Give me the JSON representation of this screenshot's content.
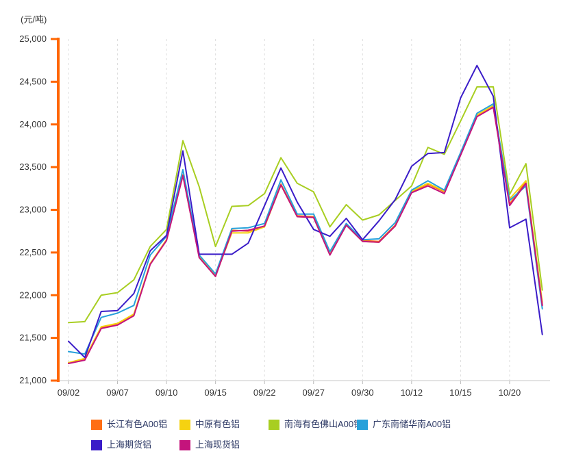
{
  "page": {
    "background": "#ffffff"
  },
  "chart_data": {
    "type": "line",
    "title": "",
    "y_axis": {
      "title": "(元/吨)",
      "min": 21000,
      "max": 25000,
      "tick_interval": 500,
      "tick_labels": [
        "25,000",
        "24,500",
        "24,000",
        "23,500",
        "23,000",
        "22,500",
        "22,000",
        "21,500",
        "21,000"
      ],
      "axis_color": "#ff6600",
      "label_color": "#333333"
    },
    "x_axis": {
      "num_points": 30,
      "tick_labels": [
        "09/02",
        "09/07",
        "09/10",
        "09/15",
        "09/22",
        "09/27",
        "09/30",
        "10/12",
        "10/15",
        "10/20"
      ],
      "tick_positions": [
        0,
        3,
        6,
        9,
        12,
        15,
        18,
        21,
        24,
        27
      ],
      "axis_color": "#e3e3e3",
      "tick_color": "#bbbbbb",
      "gridline_color": "#dddddd",
      "gridline_style": "dashed",
      "label_color": "#333333"
    },
    "legend_position": "bottom",
    "series": [
      {
        "name": "长江有色A00铝",
        "color": "#ff6e14",
        "values": [
          21210,
          21250,
          21620,
          21660,
          21770,
          22370,
          22650,
          23410,
          22450,
          22220,
          22760,
          22750,
          22810,
          23300,
          22930,
          22920,
          22480,
          22830,
          22640,
          22630,
          22820,
          23210,
          23300,
          23210,
          23650,
          24100,
          24210,
          23070,
          23330,
          21890
        ]
      },
      {
        "name": "中原有色铝",
        "color": "#f5d211",
        "values": [
          21210,
          21260,
          21630,
          21670,
          21780,
          22370,
          22650,
          23400,
          22450,
          22230,
          22730,
          22730,
          22800,
          23290,
          22920,
          22910,
          22480,
          22820,
          22630,
          22620,
          22810,
          23220,
          23310,
          23220,
          23660,
          24110,
          24220,
          23130,
          23340,
          21920
        ]
      },
      {
        "name": "南海有色佛山A00铝",
        "color": "#a8ce21",
        "values": [
          21680,
          21690,
          22000,
          22030,
          22180,
          22570,
          22770,
          23810,
          23270,
          22570,
          23040,
          23050,
          23190,
          23610,
          23310,
          23210,
          22800,
          23060,
          22880,
          22940,
          23110,
          23280,
          23730,
          23650,
          24040,
          24440,
          24440,
          23180,
          23540,
          22060
        ]
      },
      {
        "name": "广东南储华南A00铝",
        "color": "#27a1da",
        "values": [
          21340,
          21310,
          21740,
          21790,
          21880,
          22470,
          22690,
          23470,
          22470,
          22250,
          22780,
          22790,
          22840,
          23350,
          22950,
          22950,
          22510,
          22840,
          22650,
          22660,
          22850,
          23230,
          23340,
          23230,
          23670,
          24130,
          24240,
          23110,
          23280,
          21840
        ]
      },
      {
        "name": "上海期货铝",
        "color": "#3a1cc8",
        "values": [
          21460,
          21270,
          21810,
          21820,
          22020,
          22520,
          22700,
          23690,
          22480,
          22480,
          22480,
          22610,
          23050,
          23490,
          23090,
          22770,
          22690,
          22900,
          22650,
          22870,
          23120,
          23510,
          23660,
          23670,
          24310,
          24690,
          24330,
          22790,
          22890,
          21540
        ]
      },
      {
        "name": "上海现货铝",
        "color": "#c4147c",
        "values": [
          21200,
          21240,
          21610,
          21650,
          21760,
          22360,
          22640,
          23400,
          22440,
          22220,
          22750,
          22760,
          22810,
          23290,
          22920,
          22910,
          22470,
          22820,
          22630,
          22620,
          22810,
          23200,
          23280,
          23190,
          23640,
          24090,
          24200,
          23050,
          23310,
          21880
        ]
      }
    ]
  }
}
